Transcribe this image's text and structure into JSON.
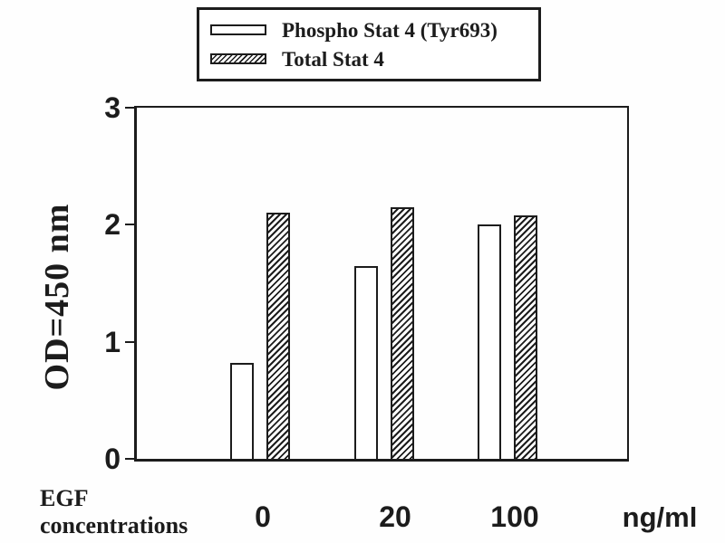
{
  "figure": {
    "background": "#ffffff",
    "ink_color": "#1c1c1c"
  },
  "legend": {
    "items": [
      {
        "label": "Phospho Stat 4 (Tyr693)",
        "swatch": "open-bar"
      },
      {
        "label": "Total Stat 4",
        "swatch": "hatched-bar"
      }
    ]
  },
  "axis": {
    "y_label": "OD=450 nm",
    "y_ticks": [
      "3",
      "2",
      "1",
      "0"
    ],
    "x_ticks": [
      "0",
      "20",
      "100"
    ],
    "x_caption_line1": "EGF",
    "x_caption_line2": "concentrations",
    "x_unit": "ng/ml"
  },
  "chart_data": {
    "type": "bar",
    "title": "",
    "categories": [
      "0",
      "20",
      "100"
    ],
    "xlabel": "EGF concentrations (ng/ml)",
    "ylabel": "OD=450 nm",
    "ylim": [
      0,
      3
    ],
    "yticks": [
      0,
      1,
      2,
      3
    ],
    "grid": false,
    "legend_position": "top",
    "series": [
      {
        "name": "Phospho Stat 4 (Tyr693)",
        "style": "open-white",
        "values": [
          0.82,
          1.65,
          2.0
        ]
      },
      {
        "name": "Total Stat 4",
        "style": "hatched-diagonal",
        "values": [
          2.1,
          2.15,
          2.08
        ]
      }
    ]
  }
}
